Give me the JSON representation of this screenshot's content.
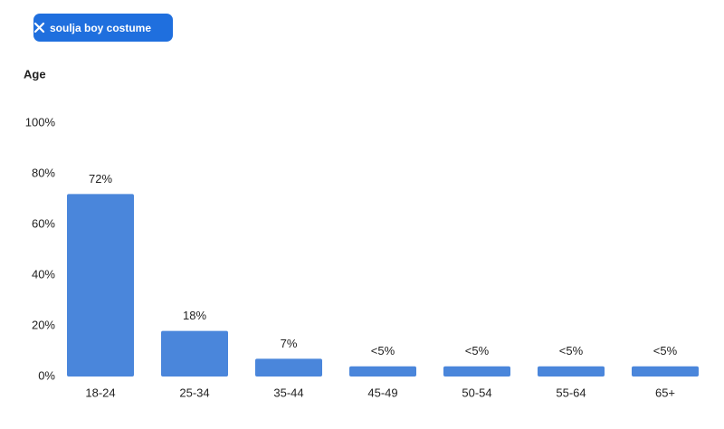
{
  "filter_chip": {
    "label": "soulja boy costume"
  },
  "chart_data": {
    "type": "bar",
    "title": "Age",
    "categories": [
      "18-24",
      "25-34",
      "35-44",
      "45-49",
      "50-54",
      "55-64",
      "65+"
    ],
    "values": [
      72,
      18,
      7,
      4,
      4,
      4,
      4
    ],
    "value_labels": [
      "72%",
      "18%",
      "7%",
      "<5%",
      "<5%",
      "<5%",
      "<5%"
    ],
    "color": "#4a86db",
    "ylim": [
      0,
      100
    ],
    "yticks": [
      {
        "value": 0,
        "label": "0%"
      },
      {
        "value": 20,
        "label": "20%"
      },
      {
        "value": 40,
        "label": "40%"
      },
      {
        "value": 60,
        "label": "60%"
      },
      {
        "value": 80,
        "label": "80%"
      },
      {
        "value": 100,
        "label": "100%"
      }
    ],
    "grid": false
  }
}
